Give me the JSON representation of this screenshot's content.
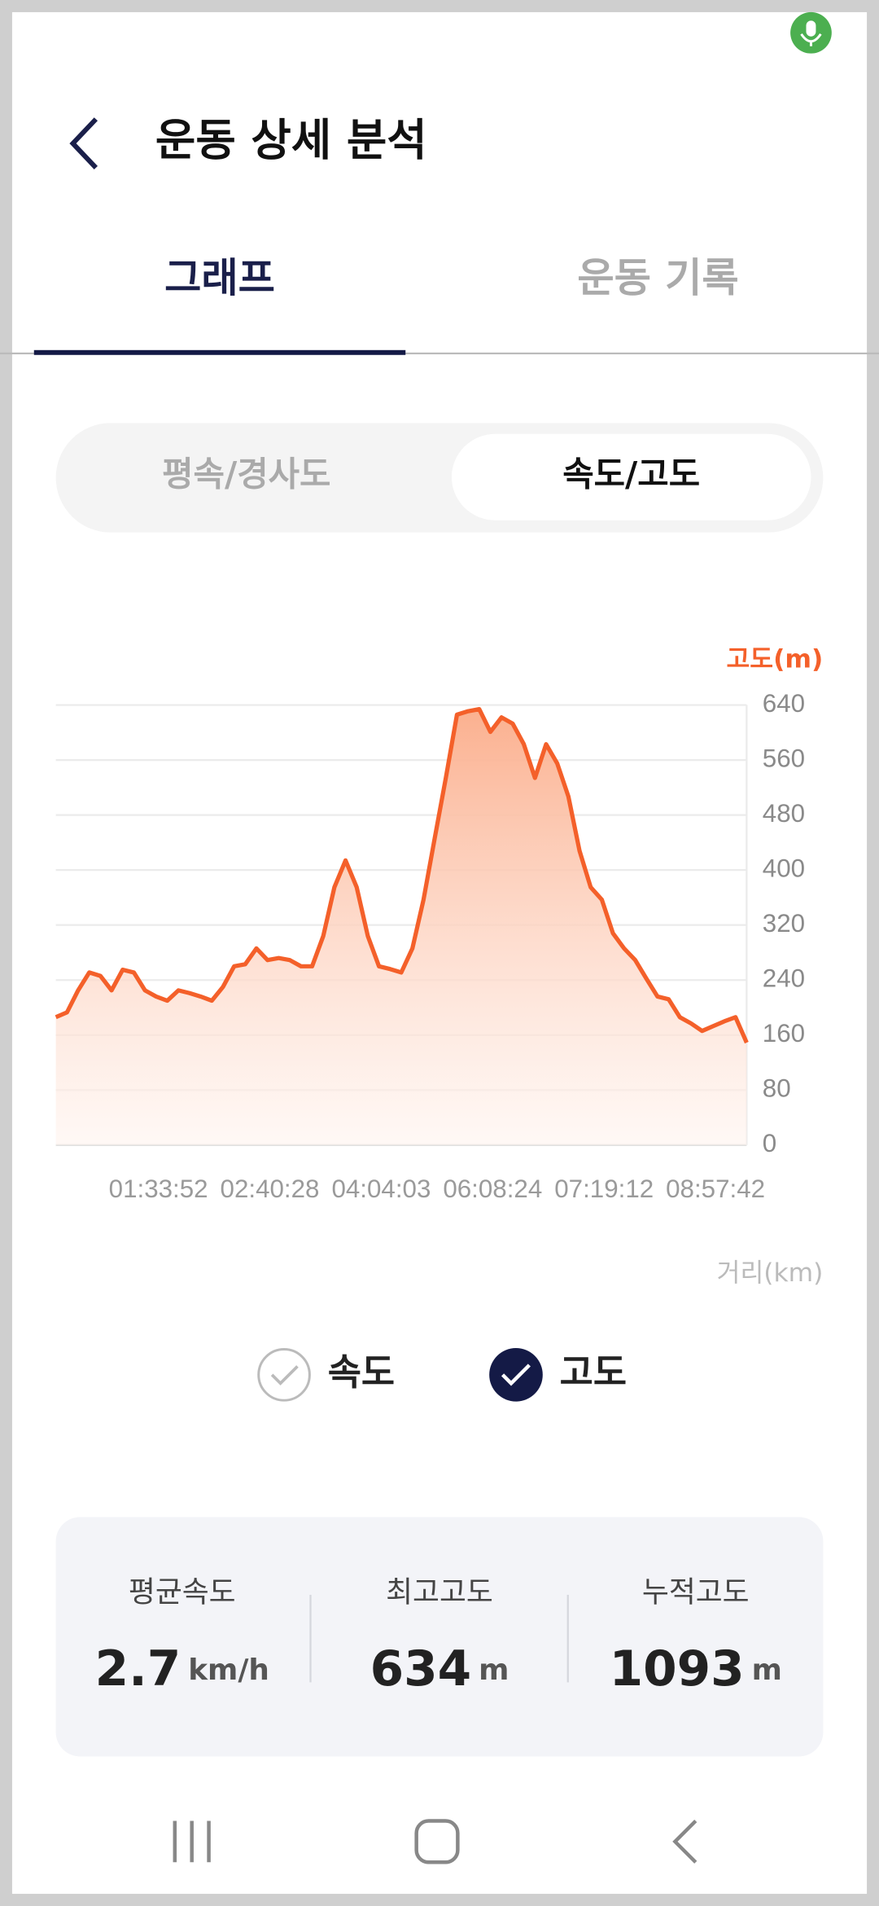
{
  "header": {
    "title": "운동 상세 분석"
  },
  "tabs": [
    "그래프",
    "운동 기록"
  ],
  "segments": [
    "평속/경사도",
    "속도/고도"
  ],
  "chart_data": {
    "type": "area",
    "y_label": "고도(m)",
    "x_label": "거리(km)",
    "categories": [
      null,
      null,
      null,
      null,
      null,
      null,
      null,
      null,
      null,
      "01:33:52",
      null,
      null,
      null,
      null,
      null,
      null,
      null,
      null,
      null,
      "02:40:28",
      null,
      null,
      null,
      null,
      null,
      null,
      null,
      null,
      null,
      "04:04:03",
      null,
      null,
      null,
      null,
      null,
      null,
      null,
      null,
      null,
      "06:08:24",
      null,
      null,
      null,
      null,
      null,
      null,
      null,
      null,
      null,
      "07:19:12",
      null,
      null,
      null,
      null,
      null,
      null,
      null,
      null,
      null,
      "08:57:42",
      null,
      null,
      null
    ],
    "values": [
      186,
      193,
      225,
      251,
      246,
      225,
      255,
      251,
      225,
      216,
      210,
      225,
      221,
      216,
      210,
      230,
      260,
      263,
      286,
      269,
      272,
      269,
      260,
      260,
      304,
      375,
      414,
      375,
      304,
      260,
      256,
      251,
      286,
      357,
      446,
      534,
      626,
      631,
      634,
      601,
      622,
      613,
      583,
      534,
      583,
      555,
      507,
      428,
      375,
      357,
      308,
      286,
      269,
      242,
      216,
      212,
      186,
      177,
      166,
      173,
      180,
      186,
      149
    ],
    "color": "#f4602a",
    "axis": "y2",
    "y2lim": [
      0,
      640
    ],
    "y2ticks": [
      0,
      80,
      160,
      240,
      320,
      400,
      480,
      560,
      640
    ],
    "grid": true
  },
  "legend": [
    {
      "label": "속도",
      "checked": false
    },
    {
      "label": "고도",
      "checked": true
    }
  ],
  "stats": [
    {
      "label": "평균속도",
      "value": "2.7",
      "unit": "km/h"
    },
    {
      "label": "최고고도",
      "value": "634",
      "unit": "m"
    },
    {
      "label": "누적고도",
      "value": "1093",
      "unit": "m"
    }
  ]
}
